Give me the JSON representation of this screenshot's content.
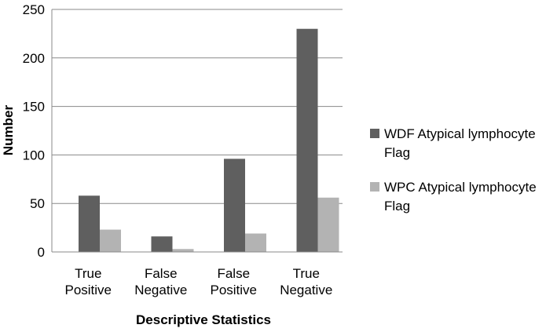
{
  "chart_data": {
    "type": "bar",
    "categories": [
      [
        "True",
        "Positive"
      ],
      [
        "False",
        "Negative"
      ],
      [
        "False",
        "Positive"
      ],
      [
        "True",
        "Negative"
      ]
    ],
    "series": [
      {
        "name": [
          "WDF Atypical lymphocyte",
          "Flag"
        ],
        "values": [
          58,
          16,
          96,
          230
        ],
        "color": "#5f5f5f"
      },
      {
        "name": [
          "WPC Atypical lymphocyte",
          "Flag"
        ],
        "values": [
          23,
          3,
          19,
          56
        ],
        "color": "#b3b3b3"
      }
    ],
    "xlabel": "Descriptive Statistics",
    "ylabel": "Number",
    "ylim": [
      0,
      250
    ],
    "yticks": [
      0,
      50,
      100,
      150,
      200,
      250
    ],
    "grid": true,
    "legend_position": "right"
  }
}
